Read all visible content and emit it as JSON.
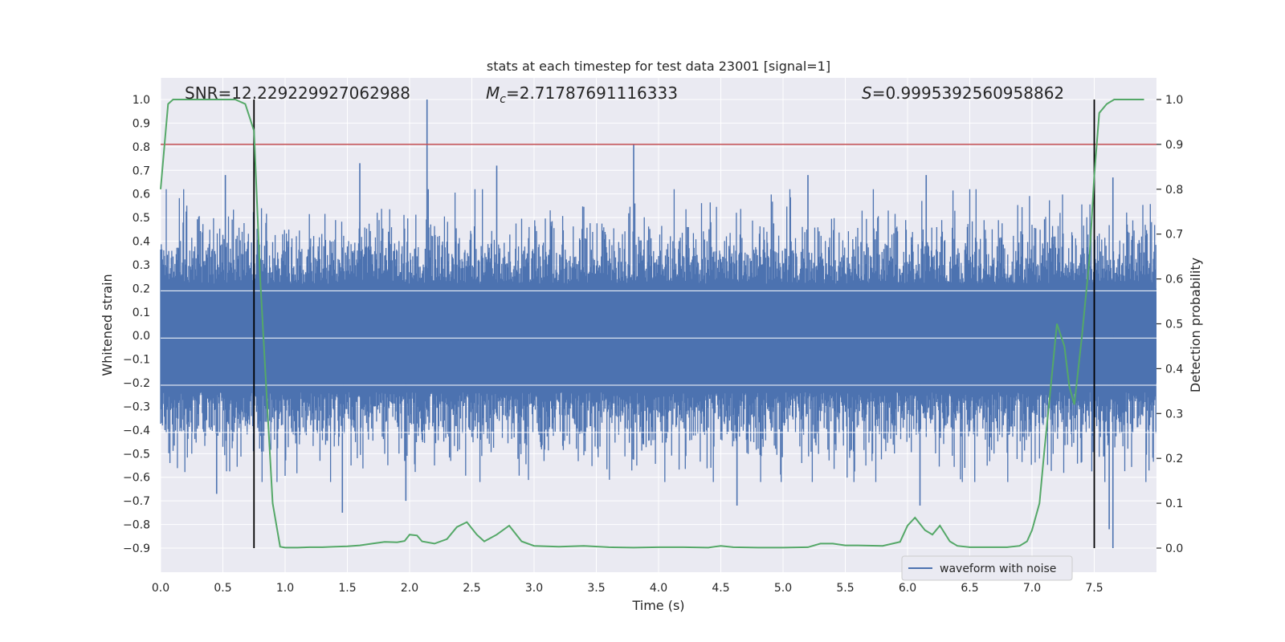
{
  "chart_data": {
    "type": "line",
    "title": "stats at each timestep for test data 23001 [signal=1]",
    "xlabel": "Time (s)",
    "ylabel": "Whitened strain",
    "y2label": "Detection probability",
    "xlim": [
      0.0,
      8.0
    ],
    "ylim": [
      -1.0,
      1.1
    ],
    "y2lim": [
      -0.05,
      1.05
    ],
    "x_ticks": [
      "0.0",
      "0.5",
      "1.0",
      "1.5",
      "2.0",
      "2.5",
      "3.0",
      "3.5",
      "4.0",
      "4.5",
      "5.0",
      "5.5",
      "6.0",
      "6.5",
      "7.0",
      "7.5"
    ],
    "y_ticks": [
      "1.0",
      "0.9",
      "0.8",
      "0.7",
      "0.6",
      "0.5",
      "0.4",
      "0.3",
      "0.2",
      "0.1",
      "0.0",
      "−0.1",
      "−0.2",
      "−0.3",
      "−0.4",
      "−0.5",
      "−0.6",
      "−0.7",
      "−0.8",
      "−0.9"
    ],
    "y2_ticks": [
      "1.0",
      "0.9",
      "0.8",
      "0.7",
      "0.6",
      "0.5",
      "0.4",
      "0.3",
      "0.2",
      "0.1",
      "0.0"
    ],
    "annotations": {
      "snr": "SNR=12.229229927062988",
      "mc_symbol": "M",
      "mc_sub": "c",
      "mc_value": "=2.71787691116333",
      "s_symbol": "S",
      "s_value": "=0.9995392560958862"
    },
    "threshold_y2": 0.9,
    "vertical_lines_x": [
      0.75,
      7.5
    ],
    "legend": {
      "label": "waveform with noise",
      "position": "lower-right"
    },
    "colors": {
      "waveform": "#4c72b0",
      "probability": "#55a868",
      "threshold": "#c44e52",
      "vline": "#000000",
      "axes_bg": "#eaeaf2",
      "grid": "#ffffff"
    },
    "series": [
      {
        "name": "waveform with noise",
        "description_values": "noise amplitude envelope",
        "spikes": [
          {
            "x": 0.52,
            "y": 0.68
          },
          {
            "x": 1.6,
            "y": 0.73
          },
          {
            "x": 2.14,
            "y": 1.0
          },
          {
            "x": 2.7,
            "y": 0.72
          },
          {
            "x": 3.8,
            "y": 0.81
          },
          {
            "x": 5.2,
            "y": 0.68
          },
          {
            "x": 6.15,
            "y": 0.68
          },
          {
            "x": 7.65,
            "y": 0.67
          },
          {
            "x": 0.45,
            "y": -0.67
          },
          {
            "x": 1.46,
            "y": -0.75
          },
          {
            "x": 1.97,
            "y": -0.7
          },
          {
            "x": 4.63,
            "y": -0.72
          },
          {
            "x": 6.1,
            "y": -0.72
          },
          {
            "x": 7.62,
            "y": -0.82
          },
          {
            "x": 7.65,
            "y": -0.9
          }
        ]
      },
      {
        "name": "detection probability",
        "x": [
          0.0,
          0.06,
          0.1,
          0.2,
          0.3,
          0.4,
          0.5,
          0.6,
          0.68,
          0.75,
          0.8,
          0.86,
          0.9,
          0.96,
          1.0,
          1.1,
          1.2,
          1.3,
          1.4,
          1.5,
          1.6,
          1.7,
          1.8,
          1.9,
          1.96,
          2.0,
          2.06,
          2.1,
          2.2,
          2.3,
          2.38,
          2.46,
          2.54,
          2.6,
          2.7,
          2.8,
          2.9,
          3.0,
          3.2,
          3.4,
          3.6,
          3.8,
          4.0,
          4.2,
          4.4,
          4.5,
          4.6,
          4.8,
          5.0,
          5.2,
          5.3,
          5.4,
          5.5,
          5.6,
          5.8,
          5.94,
          6.0,
          6.06,
          6.14,
          6.2,
          6.26,
          6.34,
          6.4,
          6.5,
          6.6,
          6.8,
          6.9,
          6.96,
          7.0,
          7.06,
          7.1,
          7.14,
          7.2,
          7.26,
          7.3,
          7.34,
          7.4,
          7.46,
          7.5,
          7.54,
          7.6,
          7.66,
          7.7,
          7.8,
          7.9
        ],
        "values": [
          0.8,
          0.99,
          1.0,
          1.0,
          1.0,
          1.0,
          1.0,
          1.0,
          0.99,
          0.93,
          0.6,
          0.3,
          0.1,
          0.003,
          0.001,
          0.001,
          0.002,
          0.002,
          0.003,
          0.004,
          0.006,
          0.01,
          0.014,
          0.013,
          0.016,
          0.03,
          0.028,
          0.015,
          0.01,
          0.02,
          0.047,
          0.058,
          0.03,
          0.015,
          0.03,
          0.05,
          0.015,
          0.005,
          0.003,
          0.005,
          0.002,
          0.001,
          0.002,
          0.002,
          0.001,
          0.005,
          0.002,
          0.001,
          0.001,
          0.002,
          0.01,
          0.01,
          0.006,
          0.006,
          0.005,
          0.014,
          0.05,
          0.068,
          0.04,
          0.03,
          0.05,
          0.015,
          0.005,
          0.002,
          0.002,
          0.002,
          0.005,
          0.015,
          0.04,
          0.1,
          0.22,
          0.33,
          0.5,
          0.45,
          0.36,
          0.32,
          0.47,
          0.64,
          0.83,
          0.97,
          0.99,
          1.0,
          1.0,
          1.0,
          1.0
        ]
      }
    ]
  }
}
